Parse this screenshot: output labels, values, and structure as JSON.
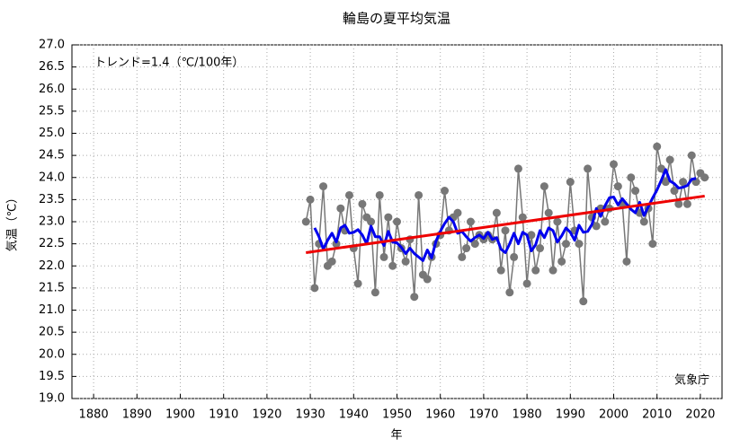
{
  "chart_data": {
    "type": "line",
    "title": "輪島の夏平均気温",
    "xlabel": "年",
    "ylabel": "気温（℃）",
    "annotations": [
      "トレンド=1.4（℃/100年）",
      "気象庁"
    ],
    "x": [
      1929,
      1930,
      1931,
      1932,
      1933,
      1934,
      1935,
      1936,
      1937,
      1938,
      1939,
      1940,
      1941,
      1942,
      1943,
      1944,
      1945,
      1946,
      1947,
      1948,
      1949,
      1950,
      1951,
      1952,
      1953,
      1954,
      1955,
      1956,
      1957,
      1958,
      1959,
      1960,
      1961,
      1962,
      1963,
      1964,
      1965,
      1966,
      1967,
      1968,
      1969,
      1970,
      1971,
      1972,
      1973,
      1974,
      1975,
      1976,
      1977,
      1978,
      1979,
      1980,
      1981,
      1982,
      1983,
      1984,
      1985,
      1986,
      1987,
      1988,
      1989,
      1990,
      1991,
      1992,
      1993,
      1994,
      1995,
      1996,
      1997,
      1998,
      1999,
      2000,
      2001,
      2002,
      2003,
      2004,
      2005,
      2006,
      2007,
      2008,
      2009,
      2010,
      2011,
      2012,
      2013,
      2014,
      2015,
      2016,
      2017,
      2018,
      2019,
      2020,
      2021
    ],
    "series": [
      {
        "color": "#777777",
        "markers": true,
        "values": [
          23.0,
          23.5,
          21.5,
          22.5,
          23.8,
          22.0,
          22.1,
          22.5,
          23.3,
          22.8,
          23.6,
          22.4,
          21.6,
          23.4,
          23.1,
          23.0,
          21.4,
          23.6,
          22.2,
          23.1,
          22.0,
          23.0,
          22.4,
          22.1,
          22.6,
          21.3,
          23.6,
          21.8,
          21.7,
          22.2,
          22.5,
          22.7,
          23.7,
          22.8,
          23.1,
          23.2,
          22.2,
          22.4,
          23.0,
          22.5,
          22.7,
          22.6,
          22.7,
          22.6,
          23.2,
          21.9,
          22.8,
          21.4,
          22.2,
          24.2,
          23.1,
          21.6,
          22.7,
          21.9,
          22.4,
          23.8,
          23.2,
          21.9,
          23.0,
          22.1,
          22.5,
          23.9,
          22.8,
          22.5,
          21.2,
          24.2,
          23.1,
          22.9,
          23.3,
          23.0,
          23.3,
          24.3,
          23.8,
          23.4,
          22.1,
          24.0,
          23.7,
          23.2,
          23.0,
          23.3,
          22.5,
          24.7,
          24.2,
          23.9,
          24.4,
          23.7,
          23.4,
          23.9,
          23.4,
          24.5,
          23.9,
          24.1,
          24.0
        ]
      },
      {
        "color": "#0000ee",
        "markers": false,
        "values": [
          null,
          null,
          22.86,
          22.66,
          22.38,
          22.58,
          22.74,
          22.54,
          22.86,
          22.92,
          22.74,
          22.76,
          22.82,
          22.7,
          22.5,
          22.9,
          22.66,
          22.66,
          22.46,
          22.78,
          22.54,
          22.52,
          22.42,
          22.28,
          22.4,
          22.28,
          22.2,
          22.12,
          22.36,
          22.18,
          22.56,
          22.78,
          22.96,
          23.1,
          23.0,
          22.74,
          22.78,
          22.66,
          22.56,
          22.64,
          22.7,
          22.62,
          22.76,
          22.6,
          22.64,
          22.38,
          22.3,
          22.5,
          22.74,
          22.5,
          22.76,
          22.7,
          22.34,
          22.48,
          22.8,
          22.64,
          22.86,
          22.8,
          22.54,
          22.68,
          22.86,
          22.76,
          22.58,
          22.92,
          22.76,
          22.78,
          22.94,
          23.3,
          23.12,
          23.36,
          23.54,
          23.56,
          23.38,
          23.52,
          23.4,
          23.28,
          23.2,
          23.44,
          23.14,
          23.34,
          23.54,
          23.72,
          23.94,
          24.18,
          23.92,
          23.86,
          23.76,
          23.78,
          23.82,
          23.96,
          23.98,
          null,
          null
        ]
      }
    ],
    "trend": {
      "color": "#ee0000",
      "x": [
        1929,
        2021
      ],
      "values": [
        22.3,
        23.58
      ]
    },
    "xlim": [
      1875,
      2025
    ],
    "ylim": [
      19.0,
      27.0
    ],
    "xticks": [
      1880,
      1890,
      1900,
      1910,
      1920,
      1930,
      1940,
      1950,
      1960,
      1970,
      1980,
      1990,
      2000,
      2010,
      2020
    ],
    "yticks": [
      {
        "value": 19.0,
        "label": "19.0"
      },
      {
        "value": 19.5,
        "label": "19.5"
      },
      {
        "value": 20.0,
        "label": "20.0"
      },
      {
        "value": 20.5,
        "label": "20.5"
      },
      {
        "value": 21.0,
        "label": "21.0"
      },
      {
        "value": 21.5,
        "label": "21.5"
      },
      {
        "value": 22.0,
        "label": "22.0"
      },
      {
        "value": 22.5,
        "label": "22.5"
      },
      {
        "value": 23.0,
        "label": "23.0"
      },
      {
        "value": 23.5,
        "label": "23.5"
      },
      {
        "value": 24.0,
        "label": "24.0"
      },
      {
        "value": 24.5,
        "label": "24.5"
      },
      {
        "value": 25.0,
        "label": "25.0"
      },
      {
        "value": 25.5,
        "label": "25.5"
      },
      {
        "value": 26.0,
        "label": "26.0"
      },
      {
        "value": 26.5,
        "label": "26.5"
      },
      {
        "value": 27.0,
        "label": "27.0"
      }
    ],
    "grid": true
  }
}
